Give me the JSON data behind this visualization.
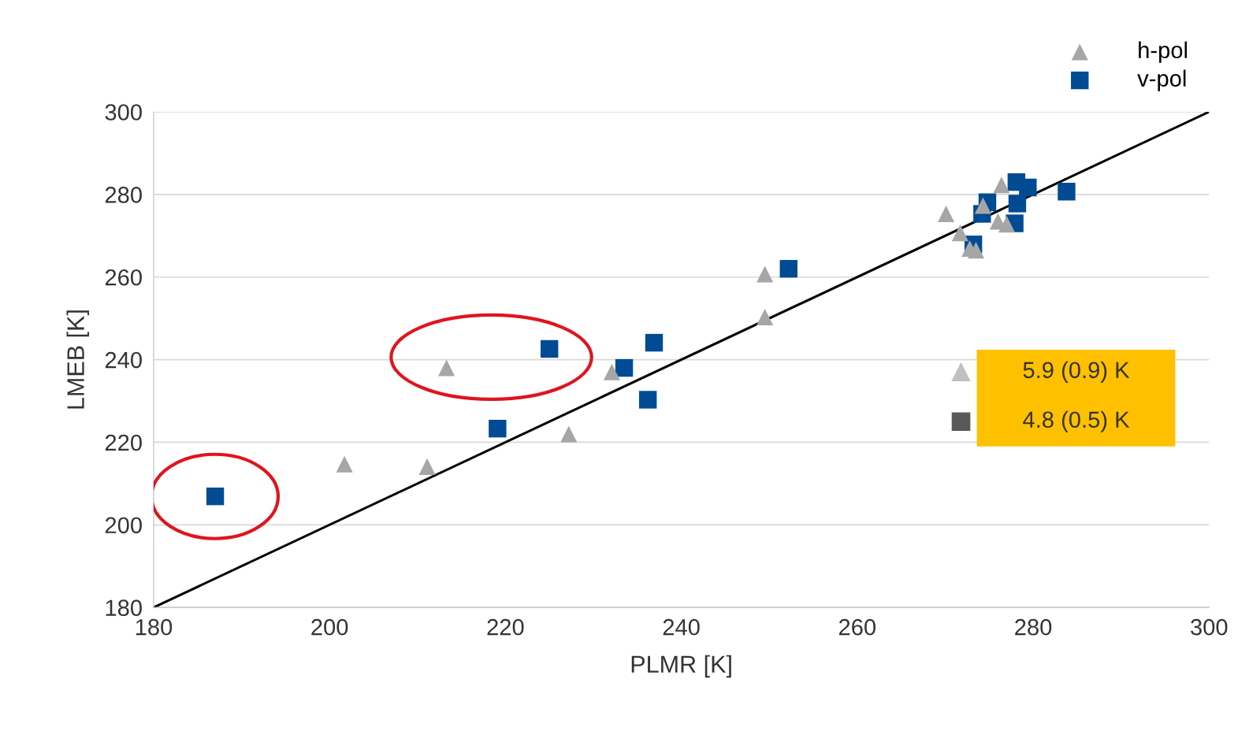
{
  "chart_data": {
    "type": "scatter",
    "xlabel": "PLMR [K]",
    "ylabel": "LMEB [K]",
    "xlim": [
      180,
      300
    ],
    "xticks": [
      180,
      200,
      220,
      240,
      260,
      280,
      300
    ],
    "ylim": [
      180,
      300
    ],
    "yticks": [
      180,
      200,
      220,
      240,
      260,
      280,
      300
    ],
    "grid": "y",
    "legend": "top right",
    "series": [
      {
        "name": "h-pol",
        "marker": "triangle",
        "color": "#a6a6a6",
        "x": [
          213.3,
          201.7,
          211.1,
          227.2,
          232.1,
          249.5,
          249.5,
          270.1,
          271.7,
          272.8,
          274.3,
          276.4,
          276.0,
          277.0,
          273.5
        ],
        "values": [
          238.0,
          214.7,
          214.1,
          222.0,
          237.0,
          260.7,
          250.3,
          275.3,
          270.7,
          266.9,
          277.3,
          282.3,
          273.5,
          272.8,
          266.5
        ]
      },
      {
        "name": "v-pol",
        "marker": "square",
        "color": "#004b93",
        "x": [
          187.0,
          219.1,
          225.0,
          233.5,
          236.9,
          236.2,
          252.2,
          273.2,
          274.2,
          274.8,
          278.1,
          279.4,
          278.2,
          277.9,
          283.8
        ],
        "values": [
          206.9,
          223.3,
          242.6,
          238.0,
          244.1,
          230.3,
          262.0,
          267.9,
          275.3,
          278.1,
          283.0,
          281.7,
          277.8,
          273.0,
          280.7
        ]
      },
      {
        "type": "line",
        "color": "#000000",
        "marker": "none",
        "x": [
          180,
          300
        ],
        "values": [
          180,
          300
        ]
      }
    ],
    "annotations": [
      "5.9 (0.9) K",
      "4.8 (0.5) K"
    ]
  }
}
